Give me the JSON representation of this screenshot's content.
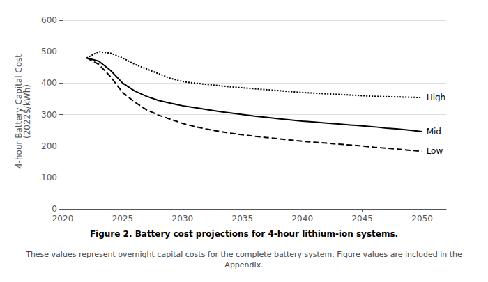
{
  "chart_data": {
    "type": "line",
    "title": "Figure 2. Battery cost projections for 4-hour lithium-ion systems.",
    "caption": "These values represent overnight capital costs for the complete battery system. Figure values are included in the\nAppendix.",
    "ylabel": "4-hour Battery Capital Cost\n(2022$/kWh)",
    "x": [
      2022,
      2023,
      2024,
      2025,
      2026,
      2027,
      2028,
      2029,
      2030,
      2031,
      2032,
      2033,
      2034,
      2035,
      2036,
      2037,
      2038,
      2039,
      2040,
      2041,
      2042,
      2043,
      2044,
      2045,
      2046,
      2047,
      2048,
      2049,
      2050
    ],
    "series": [
      {
        "name": "High",
        "color": "#000000",
        "line_style": "dotted",
        "values": [
          480,
          500,
          495,
          480,
          460,
          445,
          430,
          415,
          405,
          400,
          396,
          392,
          388,
          385,
          382,
          379,
          376,
          373,
          370,
          368,
          366,
          364,
          362,
          360,
          358,
          357,
          356,
          355,
          354
        ]
      },
      {
        "name": "Mid",
        "color": "#000000",
        "line_style": "solid",
        "values": [
          480,
          470,
          440,
          400,
          375,
          358,
          345,
          336,
          328,
          322,
          316,
          310,
          305,
          300,
          295,
          291,
          287,
          283,
          279,
          276,
          273,
          270,
          267,
          264,
          261,
          257,
          254,
          250,
          246
        ]
      },
      {
        "name": "Low",
        "color": "#000000",
        "line_style": "dashed",
        "values": [
          480,
          460,
          420,
          370,
          340,
          315,
          298,
          285,
          272,
          262,
          254,
          247,
          241,
          236,
          231,
          227,
          223,
          219,
          215,
          212,
          209,
          206,
          203,
          200,
          196,
          193,
          190,
          186,
          183
        ]
      }
    ],
    "xlim": [
      2020,
      2052
    ],
    "xticks": [
      2020,
      2025,
      2030,
      2035,
      2040,
      2045,
      2050
    ],
    "ylim": [
      0,
      620
    ],
    "yticks": [
      0,
      100,
      200,
      300,
      400,
      500,
      600
    ],
    "grid": true
  }
}
